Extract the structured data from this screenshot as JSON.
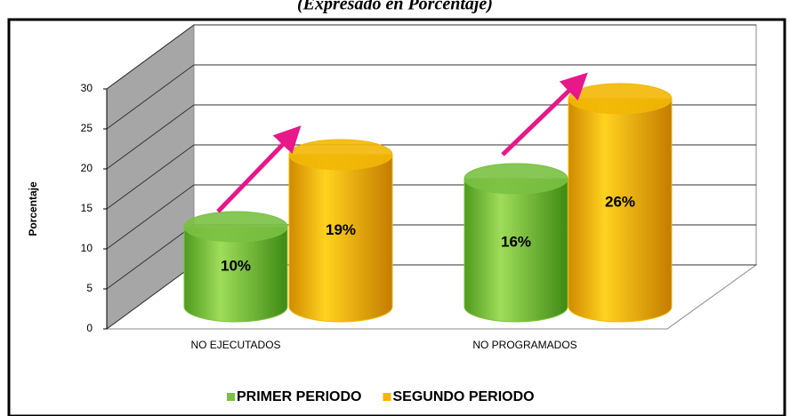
{
  "chart_data": {
    "type": "bar",
    "subtitle": "(Expresado en Porcentaje)",
    "y_label": "Porcentaje",
    "categories": [
      "NO EJECUTADOS",
      "NO PROGRAMADOS"
    ],
    "series": [
      {
        "name": "PRIMER PERIODO",
        "color": "#7ac143",
        "values": [
          10,
          16
        ],
        "value_labels": [
          "10%",
          "16%"
        ]
      },
      {
        "name": "SEGUNDO PERIODO",
        "color": "#f2b705",
        "values": [
          19,
          26
        ],
        "value_labels": [
          "19%",
          "26%"
        ]
      }
    ],
    "ylim": [
      0,
      30
    ],
    "yticks": [
      0,
      5,
      10,
      15,
      20,
      25,
      30
    ],
    "grid": true,
    "legend": "bottom"
  }
}
